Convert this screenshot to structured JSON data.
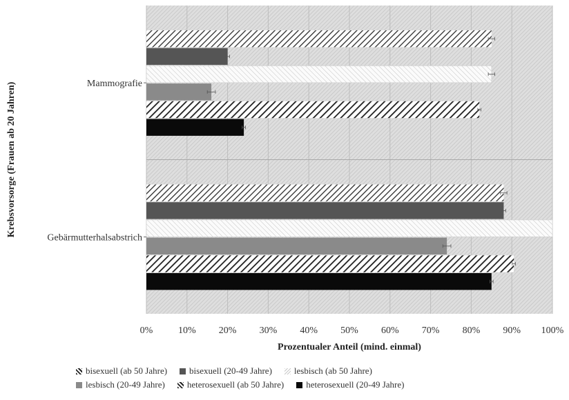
{
  "chart_data": {
    "type": "bar",
    "orientation": "horizontal",
    "xlabel": "Prozentualer Anteil (mind. einmal)",
    "ylabel": "Krebsvorsorge (Frauen ab 20 Jahren)",
    "xlim": [
      0,
      100
    ],
    "x_ticks": [
      "0%",
      "10%",
      "20%",
      "30%",
      "40%",
      "50%",
      "60%",
      "70%",
      "80%",
      "90%",
      "100%"
    ],
    "categories": [
      "Mammografie",
      "Gebärmutterhalsabstrich"
    ],
    "series": [
      {
        "name": "bisexuell (ab 50 Jahre)",
        "values": [
          85,
          88
        ],
        "errors": [
          0.8,
          0.8
        ],
        "pattern": "hatch-light"
      },
      {
        "name": "bisexuell (20-49 Jahre)",
        "values": [
          20,
          88
        ],
        "errors": [
          0.5,
          0.5
        ],
        "pattern": "solid-dark-gray"
      },
      {
        "name": "lesbisch (ab 50 Jahre)",
        "values": [
          85,
          100
        ],
        "errors": [
          0.8,
          0
        ],
        "pattern": "hatch-white"
      },
      {
        "name": "lesbisch (20-49 Jahre)",
        "values": [
          16,
          74
        ],
        "errors": [
          1,
          1
        ],
        "pattern": "solid-gray"
      },
      {
        "name": "heterosexuell (ab 50 Jahre)",
        "values": [
          82,
          90.5
        ],
        "errors": [
          0.4,
          0.4
        ],
        "pattern": "hatch-dark"
      },
      {
        "name": "heterosexuell (20-49 Jahre)",
        "values": [
          24,
          85
        ],
        "errors": [
          0.4,
          0.4
        ],
        "pattern": "solid-black"
      }
    ],
    "grid": true,
    "legend_position": "bottom",
    "colors": {
      "solid_dark_gray": "#555555",
      "solid_gray": "#8a8a8a",
      "solid_black": "#0a0a0a",
      "hatch_stroke": "#1e1e1e",
      "plot_background": "#d8d8d8"
    }
  }
}
